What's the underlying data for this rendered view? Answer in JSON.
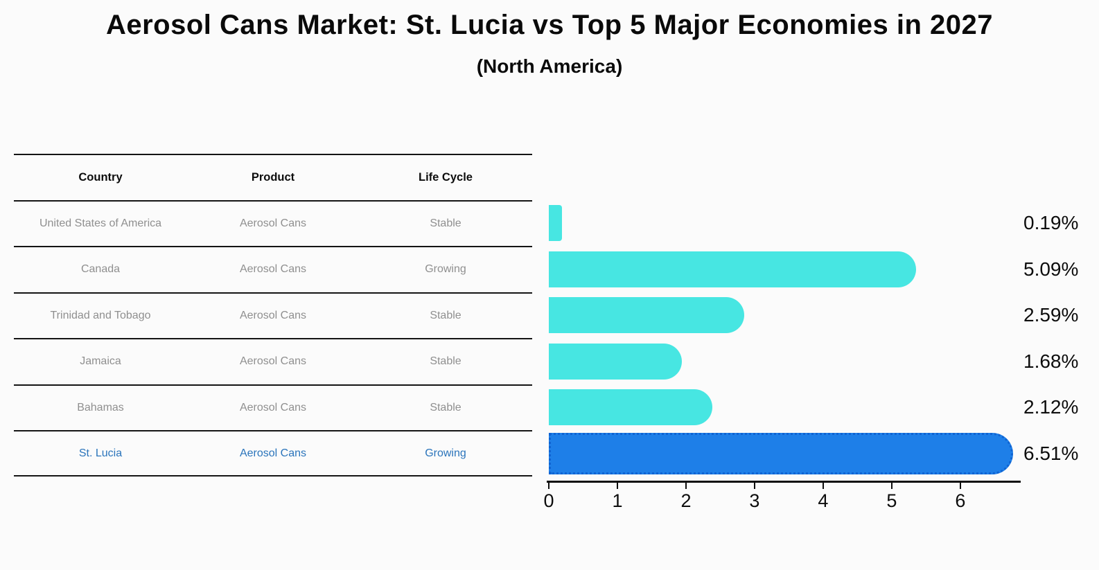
{
  "title": "Aerosol Cans Market: St. Lucia vs Top 5 Major Economies in 2027",
  "subtitle": "(North America)",
  "table": {
    "headers": [
      "Country",
      "Product",
      "Life Cycle"
    ],
    "rows": [
      {
        "country": "United States of America",
        "product": "Aerosol Cans",
        "life_cycle": "Stable"
      },
      {
        "country": "Canada",
        "product": "Aerosol Cans",
        "life_cycle": "Growing"
      },
      {
        "country": "Trinidad and Tobago",
        "product": "Aerosol Cans",
        "life_cycle": "Stable"
      },
      {
        "country": "Jamaica",
        "product": "Aerosol Cans",
        "life_cycle": "Stable"
      },
      {
        "country": "Bahamas",
        "product": "Aerosol Cans",
        "life_cycle": "Stable"
      },
      {
        "country": "St. Lucia",
        "product": "Aerosol Cans",
        "life_cycle": "Growing"
      }
    ],
    "highlight_row": "St. Lucia"
  },
  "chart_data": {
    "type": "bar",
    "orientation": "horizontal",
    "categories": [
      "United States of America",
      "Canada",
      "Trinidad and Tobago",
      "Jamaica",
      "Bahamas",
      "St. Lucia"
    ],
    "values": [
      0.19,
      5.09,
      2.59,
      1.68,
      2.12,
      6.51
    ],
    "labels": [
      "0.19%",
      "5.09%",
      "2.59%",
      "1.68%",
      "2.12%",
      "6.51%"
    ],
    "value_unit": "%",
    "xticks": [
      "0",
      "1",
      "2",
      "3",
      "4",
      "5",
      "6"
    ],
    "xlim": [
      0,
      6.85
    ],
    "grid": false,
    "legend": false,
    "highlight_index": 5,
    "bar_color": "#47E6E2",
    "highlight_color": "#1E7FE8",
    "highlight_border_color": "#0F63D2",
    "highlight_text_color": "#2A74BB",
    "label_color": "#0d0d0d"
  }
}
